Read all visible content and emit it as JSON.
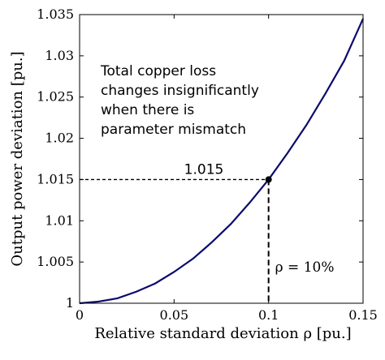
{
  "chart_data": {
    "type": "line",
    "xlabel": "Relative standard deviation ρ [pu.]",
    "ylabel": "Output power deviation [pu.]",
    "xlim": [
      0,
      0.15
    ],
    "ylim": [
      1,
      1.035
    ],
    "x_ticks": [
      "0",
      "0.05",
      "0.1",
      "0.15"
    ],
    "y_ticks": [
      "1",
      "1.005",
      "1.01",
      "1.015",
      "1.02",
      "1.025",
      "1.03",
      "1.035"
    ],
    "grid": false,
    "line_color": "#0b0b6e",
    "series": [
      {
        "x": [
          0,
          0.01,
          0.02,
          0.03,
          0.04,
          0.05,
          0.06,
          0.07,
          0.08,
          0.09,
          0.1,
          0.11,
          0.12,
          0.13,
          0.14,
          0.15
        ],
        "y": [
          1.0,
          1.0002,
          1.0006,
          1.0014,
          1.0024,
          1.0038,
          1.0054,
          1.0074,
          1.0096,
          1.0122,
          1.015,
          1.0182,
          1.0216,
          1.0254,
          1.0294,
          1.0345
        ]
      }
    ],
    "marker": {
      "x": 0.1,
      "y": 1.015
    },
    "annotations": {
      "marker_value": "1.015",
      "rho_label": "ρ = 10%",
      "note_lines": [
        "Total copper loss",
        "changes insignificantly",
        "when there is",
        "parameter mismatch"
      ]
    }
  }
}
